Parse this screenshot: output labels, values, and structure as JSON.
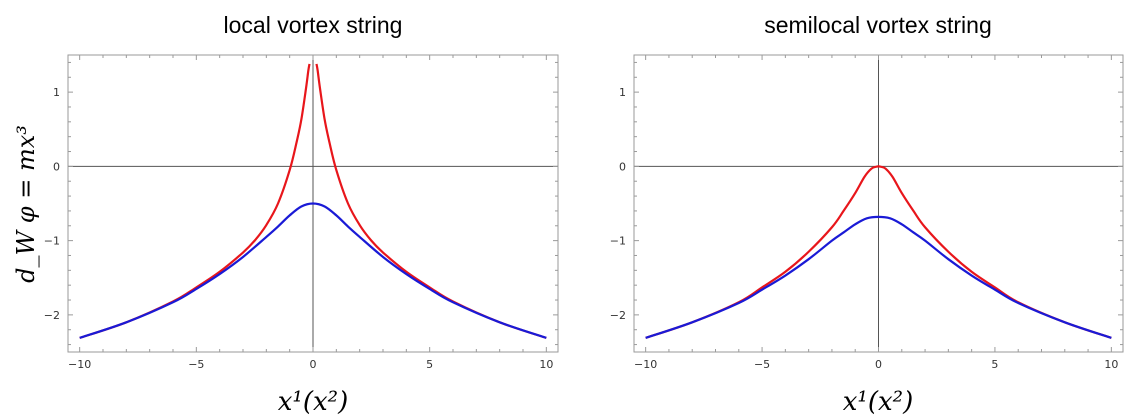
{
  "chart_data": [
    {
      "type": "line",
      "title": "local vortex string",
      "xlabel": "x¹(x²)",
      "ylabel": "d_W φ = mx³",
      "xlim": [
        -10.5,
        10.5
      ],
      "ylim": [
        -2.5,
        1.5
      ],
      "xticks": [
        -10,
        -5,
        0,
        5,
        10
      ],
      "xtick_labels": [
        "−10",
        "−5",
        "0",
        "5",
        "10"
      ],
      "yticks": [
        -2,
        -1,
        0,
        1
      ],
      "ytick_labels": [
        "−2",
        "−1",
        "0",
        "1"
      ],
      "grid": false,
      "colors": [
        "#e8161b",
        "#1a1ad6"
      ],
      "series": [
        {
          "x": [
            -10,
            -8,
            -6,
            -5,
            -4,
            -3,
            -2.5,
            -2,
            -1.5,
            -1,
            -0.7,
            -0.5,
            -0.3,
            -0.2,
            -0.15
          ],
          "y": [
            -2.31,
            -2.1,
            -1.82,
            -1.63,
            -1.42,
            -1.16,
            -1.0,
            -0.79,
            -0.5,
            -0.05,
            0.33,
            0.63,
            1.05,
            1.29,
            1.38
          ]
        },
        {
          "x": [
            0.15,
            0.2,
            0.3,
            0.5,
            0.7,
            1,
            1.5,
            2,
            2.5,
            3,
            4,
            5,
            6,
            8,
            10
          ],
          "y": [
            1.38,
            1.29,
            1.05,
            0.63,
            0.33,
            -0.05,
            -0.5,
            -0.79,
            -1.0,
            -1.16,
            -1.42,
            -1.63,
            -1.82,
            -2.1,
            -2.31
          ]
        },
        {
          "x": [
            -10,
            -8,
            -6,
            -5,
            -4,
            -3,
            -2,
            -1.5,
            -1,
            -0.5,
            0,
            0.5,
            1,
            1.5,
            2,
            3,
            4,
            5,
            6,
            8,
            10
          ],
          "y": [
            -2.31,
            -2.1,
            -1.83,
            -1.65,
            -1.45,
            -1.22,
            -0.95,
            -0.81,
            -0.66,
            -0.54,
            -0.5,
            -0.54,
            -0.66,
            -0.81,
            -0.95,
            -1.22,
            -1.45,
            -1.65,
            -1.83,
            -2.1,
            -2.31
          ]
        }
      ]
    },
    {
      "type": "line",
      "title": "semilocal vortex string",
      "xlabel": "x¹(x²)",
      "ylabel": "",
      "xlim": [
        -10.5,
        10.5
      ],
      "ylim": [
        -2.5,
        1.5
      ],
      "xticks": [
        -10,
        -5,
        0,
        5,
        10
      ],
      "xtick_labels": [
        "−10",
        "−5",
        "0",
        "5",
        "10"
      ],
      "yticks": [
        -2,
        -1,
        0,
        1
      ],
      "ytick_labels": [
        "−2",
        "−1",
        "0",
        "1"
      ],
      "grid": false,
      "colors": [
        "#e8161b",
        "#1a1ad6"
      ],
      "series": [
        {
          "x": [
            -10,
            -8,
            -6,
            -5,
            -4,
            -3,
            -2,
            -1.5,
            -1,
            -0.6,
            -0.3,
            -0.1,
            0,
            0.1,
            0.3,
            0.6,
            1,
            1.5,
            2,
            3,
            4,
            5,
            6,
            8,
            10
          ],
          "y": [
            -2.31,
            -2.1,
            -1.83,
            -1.63,
            -1.42,
            -1.15,
            -0.82,
            -0.6,
            -0.36,
            -0.14,
            -0.03,
            -0.005,
            0,
            -0.005,
            -0.03,
            -0.14,
            -0.36,
            -0.6,
            -0.82,
            -1.15,
            -1.42,
            -1.63,
            -1.83,
            -2.1,
            -2.31
          ]
        },
        {
          "x": [
            -10,
            -8,
            -6,
            -5,
            -4,
            -3,
            -2,
            -1.5,
            -1,
            -0.5,
            0,
            0.5,
            1,
            1.5,
            2,
            3,
            4,
            5,
            6,
            8,
            10
          ],
          "y": [
            -2.31,
            -2.1,
            -1.84,
            -1.66,
            -1.47,
            -1.25,
            -1.0,
            -0.89,
            -0.78,
            -0.7,
            -0.68,
            -0.7,
            -0.78,
            -0.89,
            -1.0,
            -1.25,
            -1.47,
            -1.66,
            -1.84,
            -2.1,
            -2.31
          ]
        }
      ]
    }
  ]
}
